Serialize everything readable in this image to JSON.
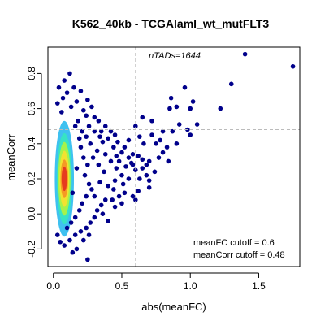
{
  "chart_data": {
    "type": "scatter",
    "title": "K562_40kb - TCGAlaml_wt_mutFLT3",
    "xlabel": "abs(meanFC)",
    "ylabel": "meanCorr",
    "xlim": [
      -0.04,
      1.8
    ],
    "ylim": [
      -0.3,
      0.95
    ],
    "x_ticks": [
      0.0,
      0.5,
      1.0,
      1.5
    ],
    "x_tick_labels": [
      "0.0",
      "0.5",
      "1.0",
      "1.5"
    ],
    "y_ticks": [
      -0.2,
      0.0,
      0.2,
      0.4,
      0.6,
      0.8
    ],
    "y_tick_labels": [
      "-0.2",
      "0.0",
      "0.2",
      "0.4",
      "0.6",
      "0.8"
    ],
    "grid": false,
    "legend": "none",
    "cutoff_lines": {
      "x": 0.6,
      "y": 0.48,
      "color": "#bbbbbb"
    },
    "annotations": {
      "n_tads": "nTADs=1644",
      "fc_cutoff": "meanFC cutoff = 0.6",
      "corr_cutoff": "meanCorr cutoff = 0.48"
    },
    "density_core": [
      {
        "x": 0.08,
        "y": 0.2,
        "rx": 0.07,
        "ry": 0.33,
        "color": "#3fc1f0"
      },
      {
        "x": 0.08,
        "y": 0.2,
        "rx": 0.055,
        "ry": 0.26,
        "color": "#37e3c4"
      },
      {
        "x": 0.08,
        "y": 0.2,
        "rx": 0.045,
        "ry": 0.21,
        "color": "#a6f24a"
      },
      {
        "x": 0.08,
        "y": 0.2,
        "rx": 0.036,
        "ry": 0.16,
        "color": "#f2e230"
      },
      {
        "x": 0.08,
        "y": 0.2,
        "rx": 0.028,
        "ry": 0.11,
        "color": "#f59a24"
      },
      {
        "x": 0.08,
        "y": 0.2,
        "rx": 0.02,
        "ry": 0.07,
        "color": "#e63b1e"
      }
    ],
    "series": [
      {
        "color": "#00008b",
        "points": [
          [
            0.12,
            0.8
          ],
          [
            0.08,
            0.76
          ],
          [
            0.04,
            0.72
          ],
          [
            0.15,
            0.72
          ],
          [
            0.2,
            0.7
          ],
          [
            0.1,
            0.69
          ],
          [
            0.07,
            0.66
          ],
          [
            0.03,
            0.63
          ],
          [
            0.25,
            0.65
          ],
          [
            0.17,
            0.64
          ],
          [
            0.13,
            0.61
          ],
          [
            0.06,
            0.58
          ],
          [
            0.22,
            0.59
          ],
          [
            0.28,
            0.61
          ],
          [
            0.3,
            0.55
          ],
          [
            0.33,
            0.53
          ],
          [
            0.26,
            0.5
          ],
          [
            0.38,
            0.5
          ],
          [
            0.35,
            0.47
          ],
          [
            0.42,
            0.47
          ],
          [
            0.45,
            0.45
          ],
          [
            0.4,
            0.43
          ],
          [
            0.47,
            0.41
          ],
          [
            0.36,
            0.41
          ],
          [
            0.52,
            0.38
          ],
          [
            0.44,
            0.38
          ],
          [
            0.5,
            0.35
          ],
          [
            0.46,
            0.33
          ],
          [
            0.55,
            0.32
          ],
          [
            0.58,
            0.34
          ],
          [
            0.62,
            0.33
          ],
          [
            0.65,
            0.31
          ],
          [
            0.57,
            0.29
          ],
          [
            0.68,
            0.28
          ],
          [
            0.7,
            0.3
          ],
          [
            0.75,
            0.4
          ],
          [
            0.72,
            0.45
          ],
          [
            0.78,
            0.42
          ],
          [
            0.65,
            0.55
          ],
          [
            0.6,
            0.5
          ],
          [
            0.72,
            0.53
          ],
          [
            0.48,
            0.3
          ],
          [
            0.53,
            0.27
          ],
          [
            0.6,
            0.25
          ],
          [
            0.65,
            0.26
          ],
          [
            0.68,
            0.22
          ],
          [
            0.7,
            0.19
          ],
          [
            0.74,
            0.24
          ],
          [
            0.55,
            0.2
          ],
          [
            0.5,
            0.22
          ],
          [
            0.45,
            0.19
          ],
          [
            0.4,
            0.16
          ],
          [
            0.62,
            0.13
          ],
          [
            0.58,
            0.1
          ],
          [
            0.52,
            0.12
          ],
          [
            0.48,
            0.1
          ],
          [
            0.44,
            0.14
          ],
          [
            0.38,
            0.08
          ],
          [
            0.35,
            0.05
          ],
          [
            0.32,
            0.02
          ],
          [
            0.3,
            -0.02
          ],
          [
            0.27,
            -0.05
          ],
          [
            0.24,
            -0.08
          ],
          [
            0.2,
            -0.1
          ],
          [
            0.16,
            -0.12
          ],
          [
            0.12,
            -0.15
          ],
          [
            0.08,
            -0.18
          ],
          [
            0.05,
            -0.16
          ],
          [
            0.03,
            -0.12
          ],
          [
            0.1,
            -0.08
          ],
          [
            0.13,
            -0.05
          ],
          [
            0.22,
            -0.15
          ],
          [
            0.17,
            -0.2
          ],
          [
            0.26,
            -0.12
          ],
          [
            0.4,
            -0.04
          ],
          [
            0.36,
            0.0
          ],
          [
            0.45,
            0.04
          ],
          [
            0.5,
            0.06
          ],
          [
            0.3,
            0.1
          ],
          [
            0.28,
            0.14
          ],
          [
            0.34,
            0.18
          ],
          [
            0.37,
            0.24
          ],
          [
            0.33,
            0.28
          ],
          [
            0.29,
            0.32
          ],
          [
            0.32,
            0.36
          ],
          [
            0.27,
            0.4
          ],
          [
            0.24,
            0.44
          ],
          [
            0.21,
            0.47
          ],
          [
            0.18,
            0.53
          ],
          [
            0.24,
            0.56
          ],
          [
            0.3,
            0.47
          ],
          [
            0.34,
            0.44
          ],
          [
            0.2,
            0.38
          ],
          [
            0.22,
            0.32
          ],
          [
            0.25,
            0.28
          ],
          [
            0.23,
            0.22
          ],
          [
            0.26,
            0.17
          ],
          [
            0.24,
            0.1
          ],
          [
            0.21,
            0.06
          ],
          [
            0.19,
            0.02
          ],
          [
            0.16,
            -0.02
          ],
          [
            0.14,
            0.12
          ],
          [
            0.17,
            0.26
          ],
          [
            0.19,
            0.43
          ],
          [
            0.16,
            0.5
          ],
          [
            0.63,
            0.44
          ],
          [
            0.66,
            0.4
          ],
          [
            0.8,
            0.35
          ],
          [
            0.83,
            0.38
          ],
          [
            0.77,
            0.32
          ],
          [
            0.8,
            0.47
          ],
          [
            0.87,
            0.47
          ],
          [
            0.92,
            0.51
          ],
          [
            0.85,
            0.6
          ],
          [
            0.9,
            0.61
          ],
          [
            0.86,
            0.66
          ],
          [
            1.0,
            0.6
          ],
          [
            0.96,
            0.72
          ],
          [
            0.98,
            0.48
          ],
          [
            1.02,
            0.64
          ],
          [
            1.05,
            0.51
          ],
          [
            1.0,
            0.45
          ],
          [
            0.9,
            0.4
          ],
          [
            0.84,
            0.3
          ],
          [
            0.7,
            0.15
          ],
          [
            0.63,
            0.2
          ],
          [
            0.58,
            0.28
          ],
          [
            1.22,
            0.6
          ],
          [
            1.3,
            0.74
          ],
          [
            1.4,
            0.91
          ],
          [
            1.75,
            0.84
          ],
          [
            0.25,
            -0.26
          ],
          [
            0.14,
            -0.22
          ],
          [
            0.55,
            0.42
          ],
          [
            0.42,
            0.3
          ],
          [
            0.38,
            0.34
          ],
          [
            0.46,
            0.26
          ],
          [
            0.51,
            0.17
          ],
          [
            0.43,
            0.08
          ],
          [
            0.6,
            0.08
          ]
        ]
      }
    ]
  }
}
